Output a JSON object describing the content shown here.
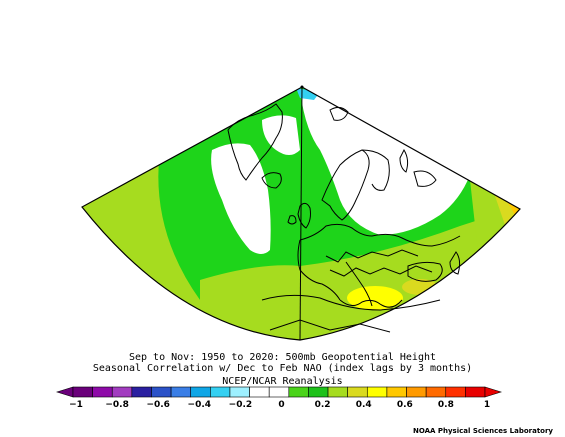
{
  "title_line1": "Sep to Nov: 1950 to 2020: 500mb Geopotential Height",
  "title_line2": "Seasonal Correlation w/ Dec to Feb NAO (index lags by 3 months)",
  "title_line3": "NCEP/NCAR Reanalysis",
  "credit": "NOAA Physical Sciences Laboratory",
  "colorbar": {
    "ticks": [
      "−1",
      "−0.8",
      "−0.6",
      "−0.4",
      "−0.2",
      "0",
      "0.2",
      "0.4",
      "0.6",
      "0.8",
      "1"
    ],
    "colors": [
      "#6a007a",
      "#8e0aa8",
      "#a23cc0",
      "#2a1fa0",
      "#2b52c8",
      "#3a7ee6",
      "#0fa6e6",
      "#34d0f2",
      "#9ef0ff",
      "#ffffff",
      "#ffffff",
      "#4ad31a",
      "#1ec11a",
      "#a6dc1f",
      "#dada1f",
      "#ffff00",
      "#ffc800",
      "#ff9a00",
      "#ff6a00",
      "#ff3000",
      "#e80000"
    ]
  }
}
